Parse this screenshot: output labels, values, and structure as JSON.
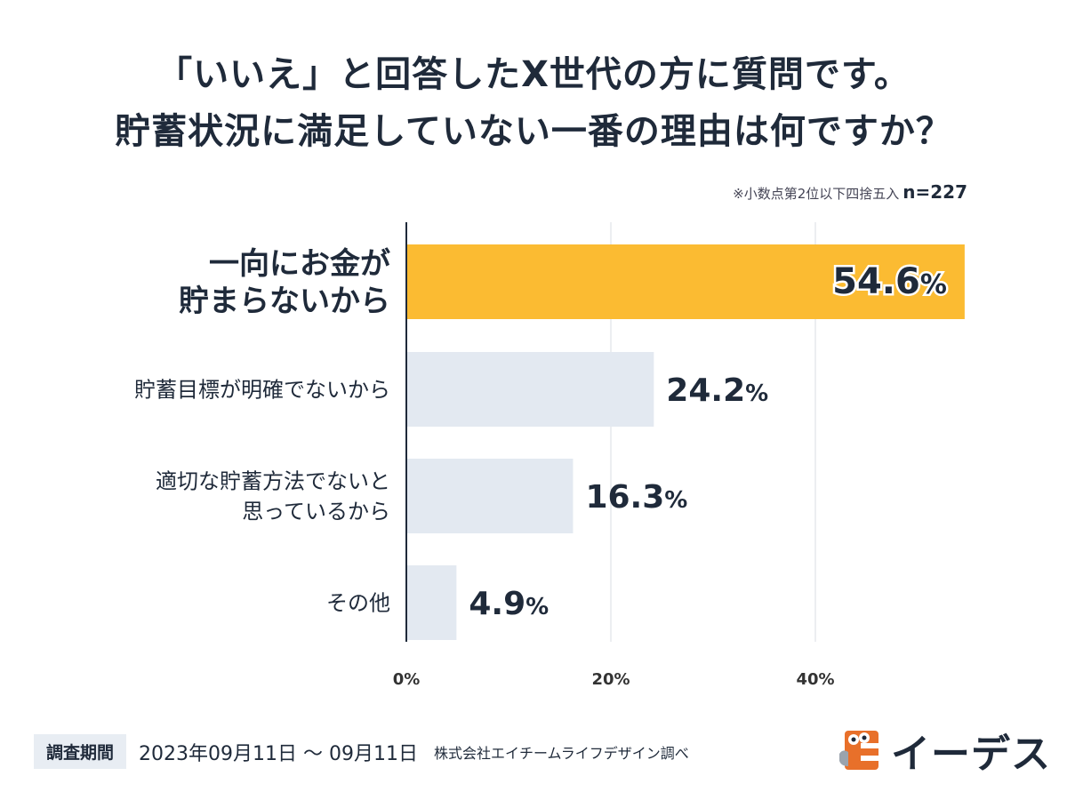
{
  "title": {
    "line1": "「いいえ」と回答したX世代の方に質問です。",
    "line2": "貯蓄状況に満足していない一番の理由は何ですか？"
  },
  "note": {
    "rounding": "※小数点第2位以下四捨五入",
    "n": "n=227"
  },
  "chart_data": {
    "type": "bar",
    "orientation": "horizontal",
    "categories": [
      [
        "一向にお金が",
        "貯まらないから"
      ],
      [
        "貯蓄目標が明確でないから"
      ],
      [
        "適切な貯蓄方法でないと",
        "思っているから"
      ],
      [
        "その他"
      ]
    ],
    "values": [
      54.6,
      24.2,
      16.3,
      4.9
    ],
    "value_labels": [
      "54.6%",
      "24.2%",
      "16.3%",
      "4.9%"
    ],
    "xlim": [
      0,
      60
    ],
    "xticks": [
      0,
      20,
      40
    ],
    "xtick_labels": [
      "0%",
      "20%",
      "40%"
    ],
    "grid": true,
    "highlight_color": "#fbbb32",
    "bar_color": "#e3e9f1"
  },
  "footer": {
    "period_label": "調査期間",
    "dates": "2023年09月11日 〜 09月11日",
    "source": "株式会社エイチームライフデザイン調べ"
  },
  "logo": {
    "text": "イーデス",
    "icon": "mascot-icon"
  }
}
